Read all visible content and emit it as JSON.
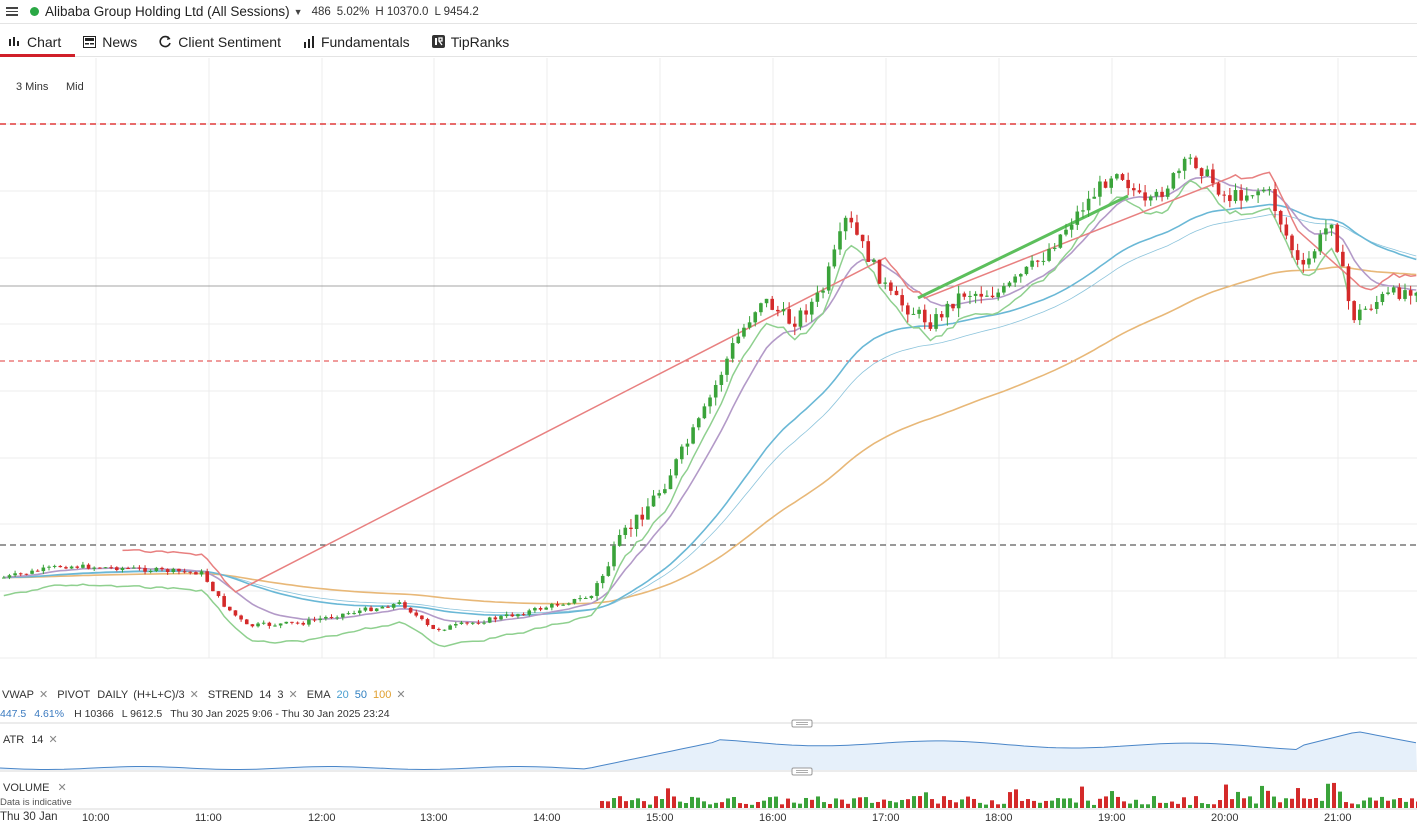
{
  "header": {
    "instrument": "Alibaba Group Holding Ltd (All Sessions)",
    "status_color": "#2aa845",
    "change_points": "486",
    "change_pct": "5.02%",
    "high": "H 10370.0",
    "low": "L 9454.2"
  },
  "tabs": [
    {
      "label": "Chart",
      "icon": "bar-chart-icon",
      "active": true
    },
    {
      "label": "News",
      "icon": "newspaper-icon"
    },
    {
      "label": "Client Sentiment",
      "icon": "refresh-icon"
    },
    {
      "label": "Fundamentals",
      "icon": "column-chart-icon"
    },
    {
      "label": "TipRanks",
      "icon": "tipranks-logo-icon"
    }
  ],
  "toolbar": {
    "interval": "3 Mins",
    "price_type": "Mid"
  },
  "indicators": {
    "vwap": "VWAP",
    "pivot": "PIVOT",
    "pivot_period": "DAILY",
    "pivot_formula": "(H+L+C)/3",
    "strend": "STREND",
    "strend_p1": "14",
    "strend_p2": "3",
    "ema": "EMA",
    "ema_p1": "20",
    "ema_p2": "50",
    "ema_p3": "100",
    "ema_colors": [
      "#6aaed6",
      "#3a8fd0",
      "#e0a030"
    ]
  },
  "vwap_info": {
    "value": "447.5",
    "pct": "4.61%",
    "high": "H 10366",
    "low": "L 9612.5",
    "range": "Thu 30 Jan 2025 9:06 - Thu 30 Jan 2025 23:24"
  },
  "atr": {
    "label": "ATR",
    "period": "14"
  },
  "volume": {
    "label": "VOLUME",
    "note": "Data is indicative"
  },
  "x_axis": {
    "date_label": "Thu 30 Jan",
    "times": [
      "10:00",
      "11:00",
      "12:00",
      "13:00",
      "14:00",
      "15:00",
      "16:00",
      "17:00",
      "18:00",
      "19:00",
      "20:00",
      "21:00"
    ]
  },
  "colors": {
    "up": "#3aa33a",
    "down": "#d42a2a",
    "resistance": "#e03a3a",
    "support": "#333333"
  }
}
